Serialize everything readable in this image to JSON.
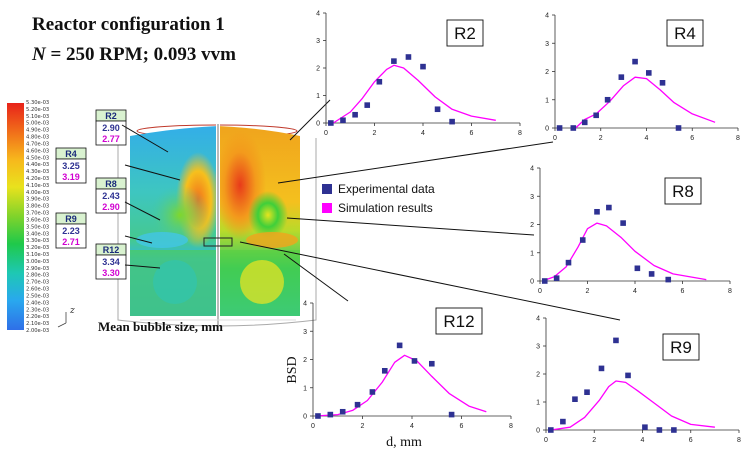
{
  "header": {
    "title": "Reactor configuration 1",
    "conditions_var": "N",
    "conditions_rest": "= 250 RPM; 0.093 vvm"
  },
  "colorbar": {
    "labels": [
      "5.30e-03",
      "5.20e-03",
      "5.10e-03",
      "5.00e-03",
      "4.90e-03",
      "4.80e-03",
      "4.70e-03",
      "4.60e-03",
      "4.50e-03",
      "4.40e-03",
      "4.30e-03",
      "4.20e-03",
      "4.10e-03",
      "4.00e-03",
      "3.90e-03",
      "3.80e-03",
      "3.70e-03",
      "3.60e-03",
      "3.50e-03",
      "3.40e-03",
      "3.30e-03",
      "3.20e-03",
      "3.10e-03",
      "3.00e-03",
      "2.90e-03",
      "2.80e-03",
      "2.70e-03",
      "2.60e-03",
      "2.50e-03",
      "2.40e-03",
      "2.30e-03",
      "2.20e-03",
      "2.10e-03",
      "2.00e-03"
    ],
    "colors": [
      "#e8231a",
      "#f06a1a",
      "#f7b81c",
      "#e9e21d",
      "#7fd32b",
      "#1fc94a",
      "#1ec8b4",
      "#29a8ee",
      "#2f6fe8"
    ]
  },
  "contour_caption": "Mean bubble size, mm",
  "axis_glyph": "z",
  "regions": [
    {
      "name": "R2",
      "experimental": "2.90",
      "simulation": "2.77"
    },
    {
      "name": "R4",
      "experimental": "3.25",
      "simulation": "3.19"
    },
    {
      "name": "R8",
      "experimental": "2.43",
      "simulation": "2.90"
    },
    {
      "name": "R9",
      "experimental": "2.23",
      "simulation": "2.71"
    },
    {
      "name": "R12",
      "experimental": "3.34",
      "simulation": "3.30"
    }
  ],
  "legend": {
    "experimental": "Experimental data",
    "simulation": "Simulation results",
    "experimental_color": "#2e3192",
    "simulation_color": "#ff00ff"
  },
  "chart_axes": {
    "ylabel": "BSD",
    "xlabel": "d, mm"
  },
  "chart_data": [
    {
      "type": "scatter",
      "title": "R2",
      "xlim": [
        0,
        8
      ],
      "ylim": [
        0,
        4
      ],
      "xticks": [
        0,
        2,
        4,
        6,
        8
      ],
      "yticks": [
        0,
        1,
        2,
        3,
        4
      ],
      "series": [
        {
          "name": "Experimental data",
          "x": [
            0.2,
            0.7,
            1.2,
            1.7,
            2.2,
            2.8,
            3.4,
            4.0,
            4.6,
            5.2
          ],
          "y": [
            0.0,
            0.1,
            0.3,
            0.65,
            1.5,
            2.25,
            2.4,
            2.05,
            0.5,
            0.05
          ]
        },
        {
          "name": "Simulation results",
          "x": [
            0.3,
            1.0,
            1.5,
            2.0,
            2.5,
            2.8,
            3.2,
            3.8,
            4.5,
            5.2,
            6.0,
            7.0
          ],
          "y": [
            0.0,
            0.4,
            0.9,
            1.5,
            1.95,
            2.1,
            2.0,
            1.55,
            0.95,
            0.5,
            0.25,
            0.1
          ]
        }
      ]
    },
    {
      "type": "scatter",
      "title": "R4",
      "xlim": [
        0,
        8
      ],
      "ylim": [
        0,
        4
      ],
      "xticks": [
        0,
        2,
        4,
        6,
        8
      ],
      "yticks": [
        0,
        1,
        2,
        3,
        4
      ],
      "series": [
        {
          "name": "Experimental data",
          "x": [
            0.2,
            0.8,
            1.3,
            1.8,
            2.3,
            2.9,
            3.5,
            4.1,
            4.7,
            5.4
          ],
          "y": [
            0.0,
            0.0,
            0.2,
            0.45,
            1.0,
            1.8,
            2.35,
            1.95,
            1.6,
            0.0
          ]
        },
        {
          "name": "Simulation results",
          "x": [
            0.9,
            1.3,
            1.8,
            2.4,
            3.0,
            3.5,
            4.0,
            4.6,
            5.2,
            6.0,
            7.0
          ],
          "y": [
            0.0,
            0.3,
            0.5,
            0.95,
            1.5,
            1.8,
            1.75,
            1.35,
            0.9,
            0.5,
            0.2
          ]
        }
      ]
    },
    {
      "type": "scatter",
      "title": "R8",
      "xlim": [
        0,
        8
      ],
      "ylim": [
        0,
        4
      ],
      "xticks": [
        0,
        2,
        4,
        6,
        8
      ],
      "yticks": [
        0,
        1,
        2,
        3,
        4
      ],
      "series": [
        {
          "name": "Experimental data",
          "x": [
            0.2,
            0.7,
            1.2,
            1.8,
            2.4,
            2.9,
            3.5,
            4.1,
            4.7,
            5.4
          ],
          "y": [
            0.0,
            0.1,
            0.65,
            1.45,
            2.45,
            2.6,
            2.05,
            0.45,
            0.25,
            0.05
          ]
        },
        {
          "name": "Simulation results",
          "x": [
            0.1,
            0.6,
            1.1,
            1.6,
            2.0,
            2.4,
            2.8,
            3.4,
            4.0,
            4.8,
            5.6,
            7.0
          ],
          "y": [
            0.0,
            0.15,
            0.5,
            1.2,
            1.85,
            2.05,
            1.95,
            1.55,
            1.05,
            0.55,
            0.25,
            0.05
          ]
        }
      ]
    },
    {
      "type": "scatter",
      "title": "R12",
      "xlim": [
        0,
        8
      ],
      "ylim": [
        0,
        4
      ],
      "xticks": [
        0,
        2,
        4,
        6,
        8
      ],
      "yticks": [
        0,
        1,
        2,
        3,
        4
      ],
      "series": [
        {
          "name": "Experimental data",
          "x": [
            0.2,
            0.7,
            1.2,
            1.8,
            2.4,
            2.9,
            3.5,
            4.1,
            4.8,
            5.6
          ],
          "y": [
            0.0,
            0.05,
            0.15,
            0.4,
            0.85,
            1.6,
            2.5,
            1.95,
            1.85,
            0.05
          ]
        },
        {
          "name": "Simulation results",
          "x": [
            0.1,
            1.0,
            1.6,
            2.2,
            2.8,
            3.3,
            3.7,
            4.2,
            4.8,
            5.5,
            6.3,
            7.0
          ],
          "y": [
            0.0,
            0.05,
            0.2,
            0.55,
            1.2,
            1.9,
            2.15,
            1.95,
            1.4,
            0.8,
            0.35,
            0.15
          ]
        }
      ]
    },
    {
      "type": "scatter",
      "title": "R9",
      "xlim": [
        0,
        8
      ],
      "ylim": [
        0,
        4
      ],
      "xticks": [
        0,
        2,
        4,
        6,
        8
      ],
      "yticks": [
        0,
        1,
        2,
        3,
        4
      ],
      "series": [
        {
          "name": "Experimental data",
          "x": [
            0.2,
            0.7,
            1.2,
            1.7,
            2.3,
            2.9,
            3.4,
            4.1,
            4.7,
            5.3
          ],
          "y": [
            0.0,
            0.3,
            1.1,
            1.35,
            2.2,
            3.2,
            1.95,
            0.1,
            0.0,
            0.0
          ]
        },
        {
          "name": "Simulation results",
          "x": [
            0.2,
            1.0,
            1.6,
            2.2,
            2.6,
            2.9,
            3.3,
            3.8,
            4.5,
            5.2,
            6.0,
            7.0
          ],
          "y": [
            0.0,
            0.1,
            0.45,
            1.05,
            1.55,
            1.75,
            1.7,
            1.4,
            0.95,
            0.5,
            0.2,
            0.1
          ]
        }
      ]
    }
  ]
}
